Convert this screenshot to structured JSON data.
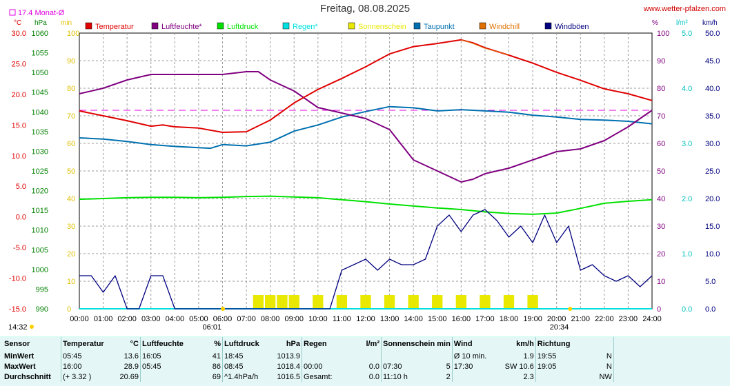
{
  "header": {
    "title": "Freitag, 08.08.2025",
    "source": "www.wetter-pfalzen.com",
    "month_avg_label": "17.4 Monat-Ø"
  },
  "colors": {
    "temperature": "#e00000",
    "humidity": "#800080",
    "pressure": "#00e000",
    "rain": "#00e0e0",
    "sunshine": "#e8e800",
    "dewpoint": "#0070b0",
    "windchill": "#e07000",
    "gusts": "#000080",
    "month_avg": "#e000e0"
  },
  "chart_data": {
    "type": "line",
    "title": "Freitag, 08.08.2025",
    "legend_position": "top",
    "grid": true,
    "x_ticks": [
      "00:00",
      "01:00",
      "02:00",
      "03:00",
      "04:00",
      "05:00",
      "06:00",
      "07:00",
      "08:00",
      "09:00",
      "10:00",
      "11:00",
      "12:00",
      "13:00",
      "14:00",
      "15:00",
      "16:00",
      "17:00",
      "18:00",
      "19:00",
      "20:00",
      "21:00",
      "22:00",
      "23:00",
      "24:00"
    ],
    "xlim": [
      0,
      24
    ],
    "axes": {
      "temperature": {
        "unit": "°C",
        "ylim": [
          -15,
          30
        ],
        "ticks": [
          "30.0",
          "25.0",
          "20.0",
          "15.0",
          "10.0",
          "5.0",
          "0.0",
          "-5.0",
          "-10.0",
          "-15.0"
        ]
      },
      "pressure": {
        "unit": "hPa",
        "ylim": [
          990,
          1060
        ],
        "ticks": [
          "1060",
          "1055",
          "1050",
          "1045",
          "1040",
          "1035",
          "1030",
          "1025",
          "1020",
          "1015",
          "1010",
          "1005",
          "1000",
          "995",
          "990"
        ]
      },
      "sunshine": {
        "unit": "min",
        "ylim": [
          0,
          100
        ],
        "ticks": [
          "100",
          "90",
          "80",
          "70",
          "60",
          "50",
          "40",
          "30",
          "20",
          "10",
          "0"
        ]
      },
      "humidity": {
        "unit": "%",
        "ylim": [
          0,
          100
        ],
        "ticks": [
          "100",
          "90",
          "80",
          "70",
          "60",
          "50",
          "40",
          "30",
          "20",
          "10",
          "0"
        ]
      },
      "rain": {
        "unit": "l/m²",
        "ylim": [
          0,
          5
        ],
        "ticks": [
          "5.0",
          "4.0",
          "3.0",
          "2.0",
          "1.0",
          "0.0"
        ]
      },
      "wind": {
        "unit": "km/h",
        "ylim": [
          0,
          50
        ],
        "ticks": [
          "50.0",
          "45.0",
          "40.0",
          "35.0",
          "30.0",
          "25.0",
          "20.0",
          "15.0",
          "10.0",
          "5.0",
          "0.0"
        ]
      }
    },
    "month_avg_temperature": 17.4,
    "sunrise": "06:01",
    "sunset": "20:34",
    "day_markers": [
      "14:32"
    ],
    "series": [
      {
        "name": "Temperatur",
        "axis": "temperature",
        "x": [
          0,
          1,
          2,
          3,
          3.5,
          4,
          5,
          6,
          7,
          8,
          9,
          10,
          11,
          12,
          13,
          14,
          15,
          16,
          16.5,
          17,
          18,
          19,
          20,
          21,
          22,
          23,
          24
        ],
        "y": [
          17.3,
          16.5,
          15.7,
          14.8,
          15.0,
          14.7,
          14.5,
          13.8,
          13.9,
          15.8,
          18.6,
          20.8,
          22.6,
          24.5,
          26.6,
          27.8,
          28.3,
          28.9,
          28.4,
          27.6,
          26.4,
          25.1,
          23.6,
          22.3,
          20.9,
          20.1,
          19.0
        ]
      },
      {
        "name": "Luftfeuchte*",
        "axis": "humidity",
        "x": [
          0,
          1,
          2,
          3,
          4,
          5,
          6,
          7,
          7.5,
          8,
          9,
          10,
          11,
          12,
          13,
          14,
          15,
          16,
          16.5,
          17,
          18,
          19,
          20,
          21,
          22,
          23,
          24
        ],
        "y": [
          78,
          80,
          83,
          85,
          85,
          85,
          85,
          86,
          86,
          83,
          79,
          73,
          71,
          69,
          65,
          54,
          50,
          46,
          47,
          49,
          51,
          54,
          57,
          58,
          61,
          66,
          72
        ]
      },
      {
        "name": "Luftdruck",
        "axis": "pressure",
        "x": [
          0,
          1,
          2,
          3,
          4,
          5,
          6,
          7,
          8,
          9,
          10,
          11,
          12,
          13,
          14,
          15,
          16,
          17,
          18,
          19,
          20,
          21,
          22,
          23,
          24
        ],
        "y": [
          1017.8,
          1018.0,
          1018.2,
          1018.3,
          1018.3,
          1018.2,
          1018.3,
          1018.5,
          1018.6,
          1018.4,
          1018.2,
          1017.7,
          1017.2,
          1016.6,
          1016.1,
          1015.6,
          1015.2,
          1014.6,
          1014.2,
          1014.0,
          1014.3,
          1015.5,
          1016.8,
          1017.3,
          1017.7
        ]
      },
      {
        "name": "Regen*",
        "axis": "rain",
        "x": [
          0,
          24
        ],
        "y": [
          0.0,
          0.0
        ]
      },
      {
        "name": "Sonnenschein",
        "axis": "sunshine",
        "x": [
          7.5,
          8,
          8.5,
          9,
          10,
          11,
          12,
          13,
          14,
          15,
          16,
          17,
          18,
          19
        ],
        "y": [
          5,
          5,
          5,
          5,
          5,
          5,
          5,
          5,
          5,
          5,
          5,
          5,
          5,
          5
        ]
      },
      {
        "name": "Taupunkt",
        "axis": "temperature",
        "x": [
          0,
          1,
          2,
          3,
          4,
          5,
          5.5,
          6,
          7,
          8,
          9,
          10,
          11,
          12,
          13,
          14,
          15,
          16,
          17,
          18,
          19,
          20,
          21,
          22,
          23,
          24
        ],
        "y": [
          12.9,
          12.7,
          12.3,
          11.8,
          11.5,
          11.3,
          11.2,
          11.8,
          11.6,
          12.2,
          14.0,
          15.0,
          16.3,
          17.2,
          18.0,
          17.8,
          17.3,
          17.5,
          17.3,
          17.1,
          16.6,
          16.3,
          15.9,
          15.8,
          15.6,
          15.2
        ]
      },
      {
        "name": "Windchill",
        "axis": "temperature",
        "x": [
          16,
          16.5,
          17,
          17.5,
          18
        ],
        "y": [
          28.9,
          28.3,
          27.5,
          27.0,
          26.4
        ]
      },
      {
        "name": "Windböen",
        "axis": "wind",
        "x": [
          0,
          0.5,
          1,
          1.5,
          2,
          2.5,
          3,
          3.5,
          4,
          4.5,
          5,
          5.5,
          6,
          6.5,
          7,
          7.5,
          8,
          8.5,
          9,
          9.5,
          10,
          10.5,
          11,
          11.5,
          12,
          12.5,
          13,
          13.5,
          14,
          14.5,
          15,
          15.5,
          16,
          16.5,
          17,
          17.5,
          18,
          18.5,
          19,
          19.5,
          20,
          20.5,
          21,
          21.5,
          22,
          22.5,
          23,
          23.5,
          24
        ],
        "y": [
          6,
          6,
          3,
          6,
          0,
          0,
          6,
          6,
          0,
          0,
          0,
          0,
          0,
          0,
          0,
          0,
          0,
          0,
          0,
          0,
          0,
          0,
          7,
          8,
          9,
          7,
          9,
          8,
          8,
          9,
          15,
          17,
          14,
          17,
          18,
          16,
          13,
          15,
          12,
          17,
          12,
          15,
          7,
          8,
          6,
          5,
          6,
          4,
          6
        ]
      }
    ]
  },
  "stats": {
    "header": {
      "sensor": "Sensor",
      "temperature": "Temperatur",
      "temperature_unit": "°C",
      "humidity": "Luftfeuchte",
      "humidity_unit": "%",
      "pressure": "Luftdruck",
      "pressure_unit": "hPa",
      "rain": "Regen",
      "rain_unit": "l/m²",
      "sunshine": "Sonnenschein min",
      "wind": "Wind",
      "wind_unit": "km/h",
      "direction": "Richtung"
    },
    "rows": [
      {
        "label": "MinWert",
        "temp_time": "05:45",
        "temp_val": "13.6",
        "hum_time": "16:05",
        "hum_val": "41",
        "press_time": "18:45",
        "press_val": "1013.9",
        "rain_time": "",
        "rain_val": "",
        "sun_time": "",
        "sun_val": "",
        "wind_time": "Ø 10 min.",
        "wind_val": "1.9",
        "dir_time": "19:55",
        "dir_val": "N"
      },
      {
        "label": "MaxWert",
        "temp_time": "16:00",
        "temp_val": "28.9",
        "hum_time": "05:45",
        "hum_val": "86",
        "press_time": "08:45",
        "press_val": "1018.4",
        "rain_time": "00:00",
        "rain_val": "0.0",
        "sun_time": "07:30",
        "sun_val": "5",
        "wind_time": "17:30",
        "wind_val": "SW 10.6",
        "dir_time": "19:05",
        "dir_val": "N"
      },
      {
        "label": "Durchschnitt",
        "temp_time": "(+ 3.32 )",
        "temp_val": "20.69",
        "hum_time": "",
        "hum_val": "69",
        "press_time": "^1.4hPa/h",
        "press_val": "1016.5",
        "rain_time": "Gesamt:",
        "rain_val": "0.0",
        "sun_time": "11:10 h",
        "sun_val": "2",
        "wind_time": "",
        "wind_val": "2.3",
        "dir_time": "",
        "dir_val": "NW"
      }
    ]
  }
}
